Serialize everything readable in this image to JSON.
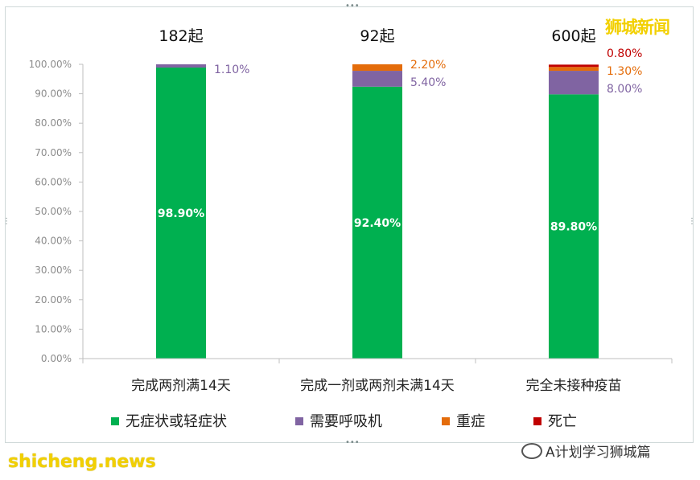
{
  "branding": {
    "watermark_top": "狮城新闻",
    "wechat_account": "A计划学习狮城篇",
    "site": "shicheng.news"
  },
  "colors": {
    "asymptomatic": "#00b050",
    "oxygen": "#8064a2",
    "severe": "#e46c0a",
    "death": "#c00000"
  },
  "chart_data": {
    "type": "bar",
    "stacked": true,
    "title": "",
    "xlabel": "",
    "ylabel": "",
    "ylim": [
      0,
      100
    ],
    "ytick_labels": [
      "0.00%",
      "10.00%",
      "20.00%",
      "30.00%",
      "40.00%",
      "50.00%",
      "60.00%",
      "70.00%",
      "80.00%",
      "90.00%",
      "100.00%"
    ],
    "categories": [
      "完成两剂满14天",
      "完成一剂或两剂未满14天",
      "完全未接种疫苗"
    ],
    "case_counts": [
      "182起",
      "92起",
      "600起"
    ],
    "legend_position": "bottom",
    "grid": false,
    "series": [
      {
        "name": "无症状或轻症状",
        "color": "#00b050",
        "values": [
          98.9,
          92.4,
          89.8
        ],
        "labels": [
          "98.90%",
          "92.40%",
          "89.80%"
        ]
      },
      {
        "name": "需要呼吸机",
        "color": "#8064a2",
        "values": [
          1.1,
          5.4,
          8.0
        ],
        "labels": [
          "1.10%",
          "5.40%",
          "8.00%"
        ]
      },
      {
        "name": "重症",
        "color": "#e46c0a",
        "values": [
          0,
          2.2,
          1.3
        ],
        "labels": [
          "",
          "2.20%",
          "1.30%"
        ]
      },
      {
        "name": "死亡",
        "color": "#c00000",
        "values": [
          0,
          0,
          0.8
        ],
        "labels": [
          "",
          "",
          "0.80%"
        ]
      }
    ]
  }
}
